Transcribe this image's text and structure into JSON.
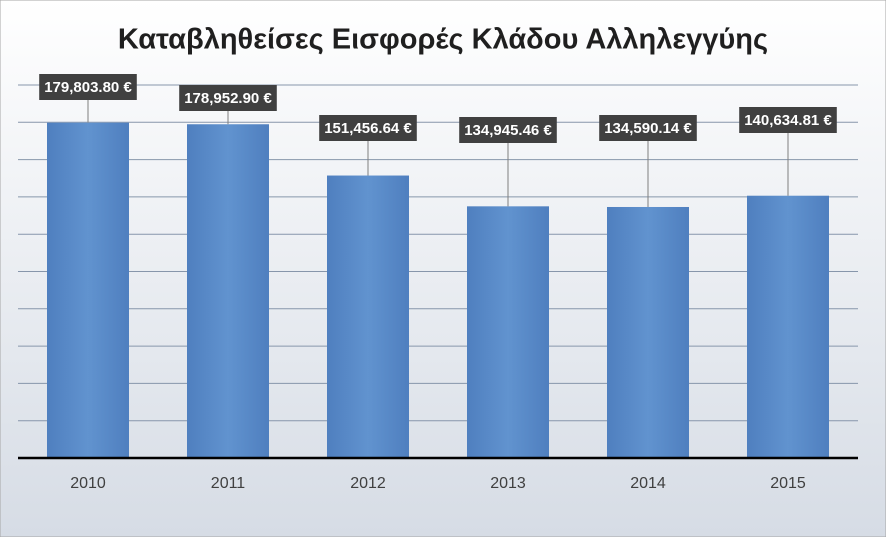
{
  "chart_data": {
    "type": "bar",
    "title": "Καταβληθείσες Εισφορές Κλάδου Αλληλεγγύης",
    "categories": [
      "2010",
      "2011",
      "2012",
      "2013",
      "2014",
      "2015"
    ],
    "values": [
      179803.8,
      178952.9,
      151456.64,
      134945.46,
      134590.14,
      140634.81
    ],
    "value_labels": [
      "179,803.80 €",
      "178,952.90 €",
      "151,456.64 €",
      "134,945.46 €",
      "134,590.14 €",
      "140,634.81 €"
    ],
    "color": "#5b8ac6",
    "ylim": [
      0,
      200000
    ],
    "yticks": [
      0,
      20000,
      40000,
      60000,
      80000,
      100000,
      120000,
      140000,
      160000,
      180000,
      200000
    ],
    "grid": true
  }
}
